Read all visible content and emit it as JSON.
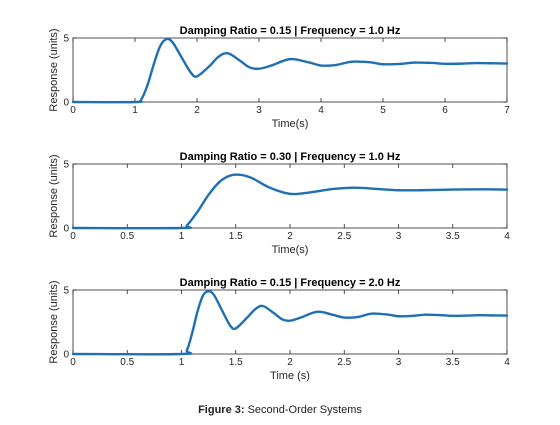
{
  "colors": {
    "line": "#1f6fb5",
    "axis": "#262626",
    "background": "#ffffff"
  },
  "caption": {
    "label": "Figure 3:",
    "text": " Second-Order Systems"
  },
  "chart_data": [
    {
      "type": "line",
      "title": "Damping Ratio = 0.15 | Frequency = 1.0 Hz",
      "xlabel": "Time(s)",
      "ylabel": "Response (units)",
      "xlim": [
        0,
        7
      ],
      "ylim": [
        0,
        5
      ],
      "xticks": [
        0,
        1,
        2,
        3,
        4,
        5,
        6,
        7
      ],
      "xtick_labels": [
        "0",
        "1",
        "2",
        "3",
        "4",
        "5",
        "6",
        "7"
      ],
      "yticks": [
        0,
        5
      ],
      "ytick_labels": [
        "0",
        "5"
      ],
      "grid": false,
      "series": [
        {
          "x": [
            0,
            1.0,
            1.1,
            1.2,
            1.3,
            1.4,
            1.5,
            1.6,
            1.75,
            1.9,
            2.0,
            2.2,
            2.35,
            2.5,
            2.7,
            2.85,
            3.0,
            3.2,
            3.5,
            3.8,
            4.0,
            4.25,
            4.5,
            4.8,
            5.0,
            5.3,
            5.5,
            5.8,
            6.0,
            6.3,
            6.5,
            6.8,
            7.0
          ],
          "y": [
            0,
            0,
            0.2,
            1.3,
            2.9,
            4.3,
            4.9,
            4.7,
            3.5,
            2.3,
            2.0,
            2.8,
            3.55,
            3.8,
            3.2,
            2.7,
            2.6,
            2.85,
            3.35,
            3.1,
            2.85,
            2.9,
            3.15,
            3.1,
            2.95,
            2.98,
            3.08,
            3.05,
            2.98,
            3.0,
            3.04,
            3.02,
            3.0
          ]
        }
      ]
    },
    {
      "type": "line",
      "title": "Damping Ratio = 0.30 | Frequency = 1.0 Hz",
      "xlabel": "Time(s)",
      "ylabel": "Response (units)",
      "xlim": [
        0,
        4
      ],
      "ylim": [
        0,
        5
      ],
      "xticks": [
        0,
        0.5,
        1,
        1.5,
        2,
        2.5,
        3,
        3.5,
        4
      ],
      "xtick_labels": [
        "0",
        "0.5",
        "1",
        "1.5",
        "2",
        "2.5",
        "3",
        "3.5",
        "4"
      ],
      "yticks": [
        0,
        5
      ],
      "ytick_labels": [
        "0",
        "5"
      ],
      "grid": false,
      "series": [
        {
          "x": [
            0,
            1.0,
            1.05,
            1.15,
            1.25,
            1.35,
            1.45,
            1.55,
            1.65,
            1.8,
            1.95,
            2.05,
            2.2,
            2.4,
            2.6,
            2.8,
            3.0,
            3.2,
            3.5,
            3.8,
            4.0
          ],
          "y": [
            0,
            0,
            0.2,
            1.3,
            2.6,
            3.6,
            4.1,
            4.15,
            3.9,
            3.2,
            2.75,
            2.65,
            2.8,
            3.05,
            3.15,
            3.05,
            2.95,
            2.95,
            3.0,
            3.02,
            3.0
          ]
        }
      ]
    },
    {
      "type": "line",
      "title": "Damping Ratio = 0.15 | Frequency = 2.0 Hz",
      "xlabel": "Time (s)",
      "ylabel": "Response (units)",
      "xlim": [
        0,
        4
      ],
      "ylim": [
        0,
        5
      ],
      "xticks": [
        0,
        0.5,
        1,
        1.5,
        2,
        2.5,
        3,
        3.5,
        4
      ],
      "xtick_labels": [
        "0",
        "0.5",
        "1",
        "1.5",
        "2",
        "2.5",
        "3",
        "3.5",
        "4"
      ],
      "yticks": [
        0,
        5
      ],
      "ytick_labels": [
        "0",
        "5"
      ],
      "grid": false,
      "series": [
        {
          "x": [
            0,
            1.0,
            1.05,
            1.1,
            1.15,
            1.2,
            1.25,
            1.3,
            1.38,
            1.45,
            1.5,
            1.6,
            1.68,
            1.75,
            1.85,
            1.93,
            2.0,
            2.1,
            2.25,
            2.4,
            2.5,
            2.63,
            2.75,
            2.9,
            3.0,
            3.13,
            3.25,
            3.4,
            3.5,
            3.63,
            3.75,
            3.9,
            4.0
          ],
          "y": [
            0,
            0,
            0.3,
            1.7,
            3.4,
            4.6,
            4.9,
            4.6,
            3.3,
            2.2,
            2.0,
            2.8,
            3.5,
            3.75,
            3.2,
            2.7,
            2.6,
            2.85,
            3.3,
            3.05,
            2.85,
            2.9,
            3.15,
            3.08,
            2.95,
            2.98,
            3.07,
            3.03,
            2.98,
            3.0,
            3.03,
            3.01,
            3.0
          ]
        }
      ]
    }
  ]
}
